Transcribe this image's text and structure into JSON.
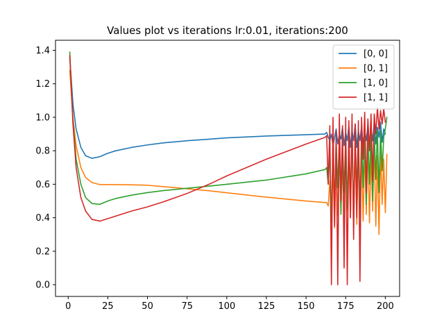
{
  "chart_data": {
    "type": "line",
    "title": "Values plot vs iterations lr:0.01, iterations:200",
    "xlabel": "",
    "ylabel": "",
    "xlim": [
      -8,
      209
    ],
    "ylim": [
      -0.07,
      1.46
    ],
    "xticks": [
      0,
      25,
      50,
      75,
      100,
      125,
      150,
      175,
      200
    ],
    "xtick_labels": [
      "0",
      "25",
      "50",
      "75",
      "100",
      "125",
      "150",
      "175",
      "200"
    ],
    "yticks": [
      0.0,
      0.2,
      0.4,
      0.6,
      0.8,
      1.0,
      1.2,
      1.4
    ],
    "ytick_labels": [
      "0.0",
      "0.2",
      "0.4",
      "0.6",
      "0.8",
      "1.0",
      "1.2",
      "1.4"
    ],
    "grid": false,
    "legend": "top-right",
    "series": [
      {
        "name": "[0, 0]",
        "color": "#1f77b4",
        "points": [
          [
            1,
            1.36
          ],
          [
            3,
            1.08
          ],
          [
            5,
            0.93
          ],
          [
            8,
            0.82
          ],
          [
            11,
            0.77
          ],
          [
            15,
            0.755
          ],
          [
            20,
            0.765
          ],
          [
            25,
            0.785
          ],
          [
            30,
            0.8
          ],
          [
            40,
            0.82
          ],
          [
            50,
            0.835
          ],
          [
            60,
            0.847
          ],
          [
            75,
            0.86
          ],
          [
            90,
            0.87
          ],
          [
            100,
            0.877
          ],
          [
            125,
            0.888
          ],
          [
            150,
            0.896
          ],
          [
            162,
            0.9
          ],
          [
            163,
            0.91
          ],
          [
            164,
            0.88
          ],
          [
            165,
            0.86
          ],
          [
            166,
            0.9
          ],
          [
            167,
            0.83
          ],
          [
            168,
            0.88
          ],
          [
            169,
            0.93
          ],
          [
            170,
            0.84
          ],
          [
            171,
            0.9
          ],
          [
            172,
            0.87
          ],
          [
            173,
            0.94
          ],
          [
            174,
            0.83
          ],
          [
            175,
            0.91
          ],
          [
            176,
            0.86
          ],
          [
            177,
            0.95
          ],
          [
            178,
            0.82
          ],
          [
            179,
            0.92
          ],
          [
            180,
            0.86
          ],
          [
            181,
            0.96
          ],
          [
            182,
            0.82
          ],
          [
            183,
            0.92
          ],
          [
            184,
            0.86
          ],
          [
            185,
            0.95
          ],
          [
            186,
            0.83
          ],
          [
            187,
            0.92
          ],
          [
            188,
            0.86
          ],
          [
            189,
            0.96
          ],
          [
            190,
            0.83
          ],
          [
            191,
            0.93
          ],
          [
            192,
            0.86
          ],
          [
            193,
            0.97
          ],
          [
            194,
            0.84
          ],
          [
            195,
            0.94
          ],
          [
            196,
            0.88
          ],
          [
            197,
            0.97
          ],
          [
            198,
            0.85
          ],
          [
            199,
            0.93
          ],
          [
            200,
            0.9
          ]
        ]
      },
      {
        "name": "[0, 1]",
        "color": "#ff7f0e",
        "points": [
          [
            1,
            1.28
          ],
          [
            3,
            1.0
          ],
          [
            5,
            0.83
          ],
          [
            8,
            0.7
          ],
          [
            11,
            0.64
          ],
          [
            15,
            0.61
          ],
          [
            20,
            0.598
          ],
          [
            25,
            0.598
          ],
          [
            30,
            0.598
          ],
          [
            40,
            0.597
          ],
          [
            50,
            0.594
          ],
          [
            60,
            0.586
          ],
          [
            75,
            0.573
          ],
          [
            90,
            0.56
          ],
          [
            100,
            0.549
          ],
          [
            125,
            0.523
          ],
          [
            150,
            0.5
          ],
          [
            163,
            0.49
          ],
          [
            164,
            0.47
          ],
          [
            165,
            0.62
          ],
          [
            166,
            0.4
          ],
          [
            167,
            0.71
          ],
          [
            168,
            0.34
          ],
          [
            169,
            0.77
          ],
          [
            170,
            0.41
          ],
          [
            171,
            0.8
          ],
          [
            172,
            0.43
          ],
          [
            173,
            0.74
          ],
          [
            174,
            0.39
          ],
          [
            175,
            0.83
          ],
          [
            176,
            0.44
          ],
          [
            177,
            0.78
          ],
          [
            178,
            0.4
          ],
          [
            179,
            0.86
          ],
          [
            180,
            0.45
          ],
          [
            181,
            0.8
          ],
          [
            182,
            0.36
          ],
          [
            183,
            0.84
          ],
          [
            184,
            0.4
          ],
          [
            185,
            0.8
          ],
          [
            186,
            0.38
          ],
          [
            187,
            0.82
          ],
          [
            188,
            0.42
          ],
          [
            189,
            0.85
          ],
          [
            190,
            0.37
          ],
          [
            191,
            0.8
          ],
          [
            192,
            0.44
          ],
          [
            193,
            0.84
          ],
          [
            194,
            0.35
          ],
          [
            195,
            0.77
          ],
          [
            196,
            0.3
          ],
          [
            197,
            0.8
          ],
          [
            198,
            0.48
          ],
          [
            199,
            0.75
          ],
          [
            200,
            0.43
          ],
          [
            201,
            0.78
          ]
        ]
      },
      {
        "name": "[1, 0]",
        "color": "#2ca02c",
        "points": [
          [
            1,
            1.39
          ],
          [
            3,
            0.98
          ],
          [
            5,
            0.75
          ],
          [
            8,
            0.6
          ],
          [
            11,
            0.52
          ],
          [
            15,
            0.485
          ],
          [
            20,
            0.48
          ],
          [
            25,
            0.5
          ],
          [
            30,
            0.515
          ],
          [
            40,
            0.535
          ],
          [
            50,
            0.55
          ],
          [
            60,
            0.562
          ],
          [
            75,
            0.576
          ],
          [
            90,
            0.59
          ],
          [
            100,
            0.6
          ],
          [
            125,
            0.625
          ],
          [
            150,
            0.662
          ],
          [
            162,
            0.688
          ],
          [
            163,
            0.7
          ],
          [
            164,
            0.6
          ],
          [
            165,
            0.82
          ],
          [
            166,
            0.37
          ],
          [
            167,
            0.85
          ],
          [
            168,
            0.47
          ],
          [
            169,
            0.86
          ],
          [
            170,
            0.58
          ],
          [
            171,
            0.88
          ],
          [
            172,
            0.42
          ],
          [
            173,
            0.87
          ],
          [
            174,
            0.55
          ],
          [
            175,
            0.9
          ],
          [
            176,
            0.46
          ],
          [
            177,
            0.88
          ],
          [
            178,
            0.52
          ],
          [
            179,
            0.91
          ],
          [
            180,
            0.43
          ],
          [
            181,
            0.89
          ],
          [
            182,
            0.56
          ],
          [
            183,
            0.92
          ],
          [
            184,
            0.45
          ],
          [
            185,
            0.9
          ],
          [
            186,
            0.58
          ],
          [
            187,
            0.92
          ],
          [
            188,
            0.48
          ],
          [
            189,
            0.9
          ],
          [
            190,
            0.6
          ],
          [
            191,
            0.93
          ],
          [
            192,
            0.5
          ],
          [
            193,
            0.91
          ],
          [
            194,
            0.63
          ],
          [
            195,
            0.92
          ],
          [
            196,
            0.55
          ],
          [
            197,
            0.92
          ],
          [
            198,
            0.68
          ],
          [
            199,
            0.88
          ],
          [
            200,
            0.93
          ],
          [
            201,
            1.0
          ]
        ]
      },
      {
        "name": "[1, 1]",
        "color": "#d62728",
        "points": [
          [
            1,
            1.37
          ],
          [
            3,
            0.96
          ],
          [
            5,
            0.7
          ],
          [
            8,
            0.52
          ],
          [
            11,
            0.44
          ],
          [
            15,
            0.39
          ],
          [
            20,
            0.38
          ],
          [
            25,
            0.395
          ],
          [
            30,
            0.41
          ],
          [
            40,
            0.44
          ],
          [
            50,
            0.465
          ],
          [
            60,
            0.495
          ],
          [
            75,
            0.545
          ],
          [
            90,
            0.605
          ],
          [
            100,
            0.65
          ],
          [
            125,
            0.75
          ],
          [
            150,
            0.84
          ],
          [
            162,
            0.88
          ],
          [
            163,
            0.89
          ],
          [
            164,
            0.6
          ],
          [
            165,
            0.95
          ],
          [
            166,
            0.0
          ],
          [
            167,
            1.0
          ],
          [
            168,
            0.35
          ],
          [
            169,
            0.92
          ],
          [
            170,
            0.0
          ],
          [
            171,
            1.02
          ],
          [
            172,
            0.5
          ],
          [
            173,
            0.95
          ],
          [
            174,
            0.1
          ],
          [
            175,
            1.0
          ],
          [
            176,
            0.0
          ],
          [
            177,
            0.98
          ],
          [
            178,
            0.4
          ],
          [
            179,
            1.02
          ],
          [
            180,
            0.27
          ],
          [
            181,
            0.96
          ],
          [
            182,
            0.4
          ],
          [
            183,
            0.98
          ],
          [
            184,
            0.02
          ],
          [
            185,
            1.0
          ],
          [
            186,
            0.75
          ],
          [
            187,
            1.03
          ],
          [
            188,
            0.55
          ],
          [
            189,
            0.99
          ],
          [
            190,
            0.8
          ],
          [
            191,
            1.02
          ],
          [
            192,
            0.62
          ],
          [
            193,
            1.02
          ],
          [
            194,
            0.9
          ],
          [
            195,
            1.06
          ],
          [
            196,
            0.93
          ],
          [
            197,
            1.04
          ],
          [
            198,
            0.96
          ],
          [
            199,
            1.05
          ],
          [
            200,
            0.97
          ]
        ]
      }
    ]
  }
}
